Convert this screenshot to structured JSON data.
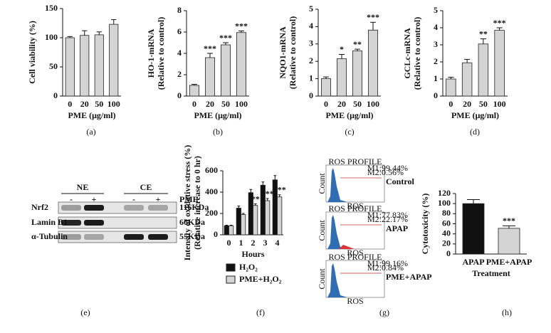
{
  "chart_data": [
    {
      "type": "bar",
      "panel_label": "(a)",
      "ylabel": [
        "Cell viability (%)"
      ],
      "xlabel": "PME (μg/ml)",
      "categories": [
        "0",
        "20",
        "50",
        "100"
      ],
      "ylim": [
        0,
        150
      ],
      "yticks": [
        0,
        50,
        100,
        150
      ],
      "series": [
        {
          "color": "#d4d4d4",
          "values": [
            100,
            104,
            105,
            123
          ],
          "errors": [
            2,
            8,
            5,
            8
          ]
        }
      ]
    },
    {
      "type": "bar",
      "panel_label": "(b)",
      "ylabel": [
        "HO-1-mRNA",
        "(Relative to control)"
      ],
      "xlabel": "PME (μg/ml)",
      "categories": [
        "0",
        "20",
        "50",
        "100"
      ],
      "ylim": [
        0,
        8
      ],
      "yticks": [
        0,
        2,
        4,
        6,
        8
      ],
      "series": [
        {
          "color": "#d4d4d4",
          "values": [
            1.0,
            3.6,
            4.8,
            5.95
          ],
          "errors": [
            0.1,
            0.4,
            0.2,
            0.15
          ],
          "annotations": [
            null,
            "***",
            "***",
            "***"
          ]
        }
      ]
    },
    {
      "type": "bar",
      "panel_label": "(c)",
      "ylabel": [
        "NQO1-mRNA",
        "(Relative to control)"
      ],
      "xlabel": "PME (μg/ml)",
      "categories": [
        "0",
        "20",
        "50",
        "100"
      ],
      "ylim": [
        0,
        5
      ],
      "yticks": [
        0,
        1,
        2,
        3,
        4,
        5
      ],
      "series": [
        {
          "color": "#d4d4d4",
          "values": [
            1.0,
            2.15,
            2.6,
            3.8
          ],
          "errors": [
            0.1,
            0.25,
            0.1,
            0.45
          ],
          "annotations": [
            null,
            "*",
            "**",
            "***"
          ]
        }
      ]
    },
    {
      "type": "bar",
      "panel_label": "(d)",
      "ylabel": [
        "GCLc-mRNA",
        "(Relative to control)"
      ],
      "xlabel": "PME (μg/ml)",
      "categories": [
        "0",
        "20",
        "50",
        "100"
      ],
      "ylim": [
        0,
        5
      ],
      "yticks": [
        0,
        1,
        2,
        3,
        4,
        5
      ],
      "series": [
        {
          "color": "#d4d4d4",
          "values": [
            1.0,
            1.95,
            3.05,
            3.85
          ],
          "errors": [
            0.1,
            0.2,
            0.3,
            0.15
          ],
          "annotations": [
            null,
            null,
            "**",
            "***"
          ]
        }
      ]
    },
    {
      "type": "bar",
      "panel_label": "(f)",
      "ylabel": [
        "Intensity of oxidative stress (%)",
        "(Relative increase to 0 hr)"
      ],
      "xlabel": "Hours",
      "categories": [
        "0",
        "1",
        "2",
        "3",
        "4"
      ],
      "ylim": [
        0,
        600
      ],
      "yticks": [
        0,
        200,
        400,
        600
      ],
      "series": [
        {
          "name": "H₂O₂",
          "color": "#111111",
          "values": [
            85,
            250,
            395,
            465,
            515
          ],
          "errors": [
            5,
            20,
            30,
            30,
            40
          ]
        },
        {
          "name": "PME+H₂O₂",
          "color": "#d4d4d4",
          "values": [
            85,
            190,
            275,
            320,
            355
          ],
          "errors": [
            5,
            10,
            15,
            20,
            20
          ],
          "annotations": [
            null,
            null,
            "**",
            "***",
            "***"
          ]
        }
      ]
    },
    {
      "type": "bar",
      "panel_label": "(h)",
      "ylabel": [
        "Cytotoxicity (%)"
      ],
      "xlabel": "Treatment",
      "categories": [
        "APAP",
        "PME+APAP"
      ],
      "ylim": [
        0,
        120
      ],
      "yticks": [
        0,
        20,
        40,
        60,
        80,
        100,
        120
      ],
      "series": [
        {
          "colors": [
            "#111111",
            "#d4d4d4"
          ],
          "values": [
            100,
            51
          ],
          "errors": [
            8,
            5
          ],
          "annotations": [
            null,
            "***"
          ]
        }
      ]
    }
  ],
  "blot": {
    "panel_label": "(e)",
    "groups": [
      "NE",
      "CE"
    ],
    "treatment": "PME",
    "lanes": [
      "-",
      "+",
      "-",
      "+"
    ],
    "rows": [
      {
        "name": "Nrf2",
        "size": "116KDa"
      },
      {
        "name": "Lamin B1",
        "size": "66KDa"
      },
      {
        "name": "α-Tubulin",
        "size": "55KDa"
      }
    ]
  },
  "flow": {
    "panel_label": "(g)",
    "x_label": "ROS",
    "y_label": "Count",
    "panels": [
      {
        "label": "Control",
        "title": "ROS PROFILE",
        "m1": "M1:99.44%",
        "m2": "M2:0.56%"
      },
      {
        "label": "APAP",
        "title": "ROS PROFILE",
        "m1": "M1:77.83%",
        "m2": "M2:22.17%"
      },
      {
        "label": "PME+APAP",
        "title": "ROS PROFILE",
        "m1": "M1:99.16%",
        "m2": "M2:0.84%"
      }
    ]
  }
}
